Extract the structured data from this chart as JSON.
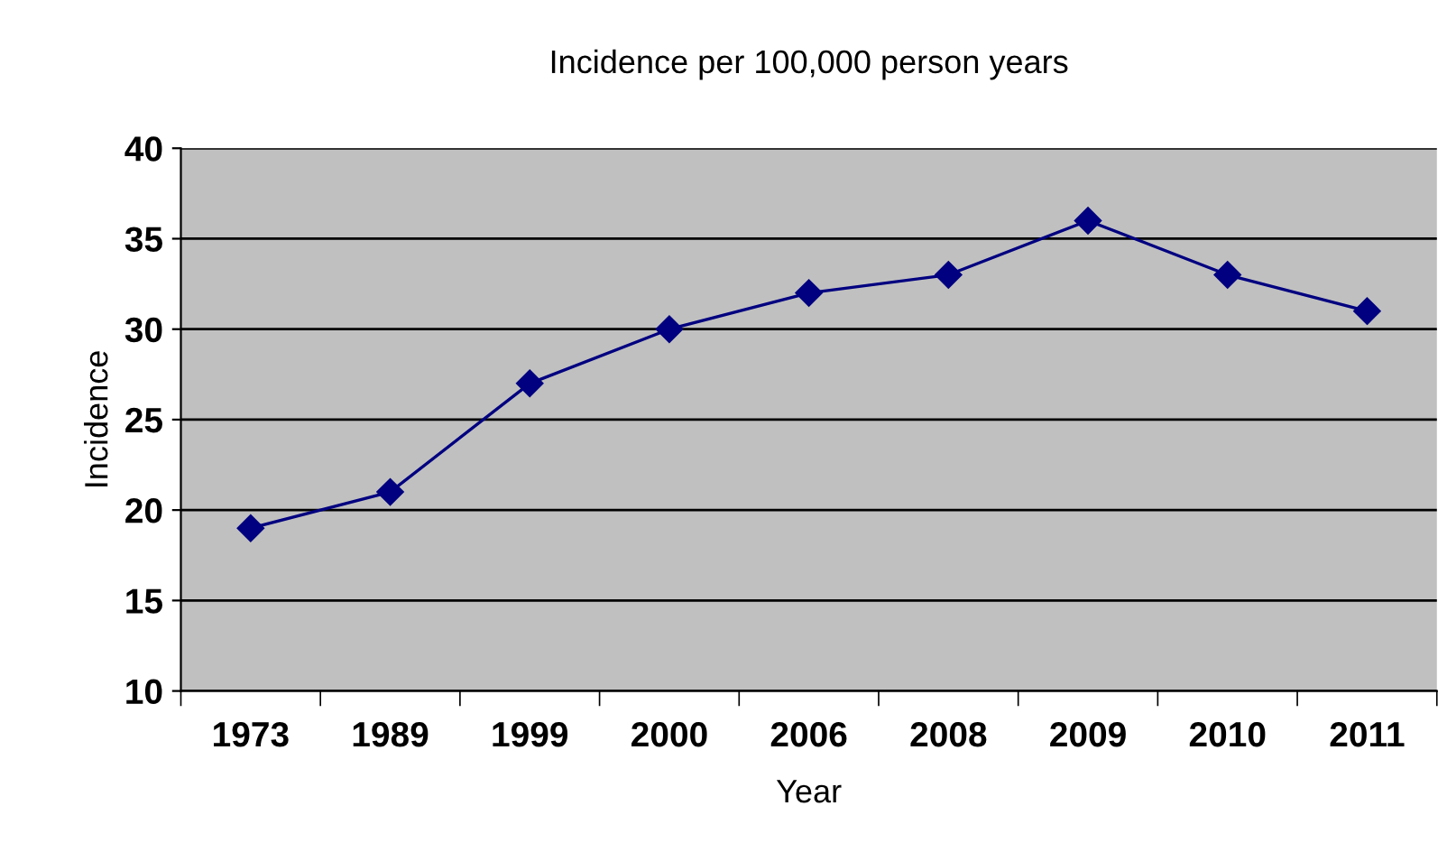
{
  "chart_data": {
    "type": "line",
    "title": "Incidence per 100,000 person years",
    "xlabel": "Year",
    "ylabel": "Incidence",
    "categories": [
      "1973",
      "1989",
      "1999",
      "2000",
      "2006",
      "2008",
      "2009",
      "2010",
      "2011"
    ],
    "series": [
      {
        "color": "#000080",
        "values": [
          19,
          21,
          27,
          30,
          32,
          33,
          36,
          33,
          31
        ]
      }
    ],
    "ylim": [
      10,
      40
    ],
    "yticks": [
      10,
      15,
      20,
      25,
      30,
      35,
      40
    ],
    "grid": "y",
    "marker": "diamond",
    "line_style": "solid",
    "legend": false
  }
}
